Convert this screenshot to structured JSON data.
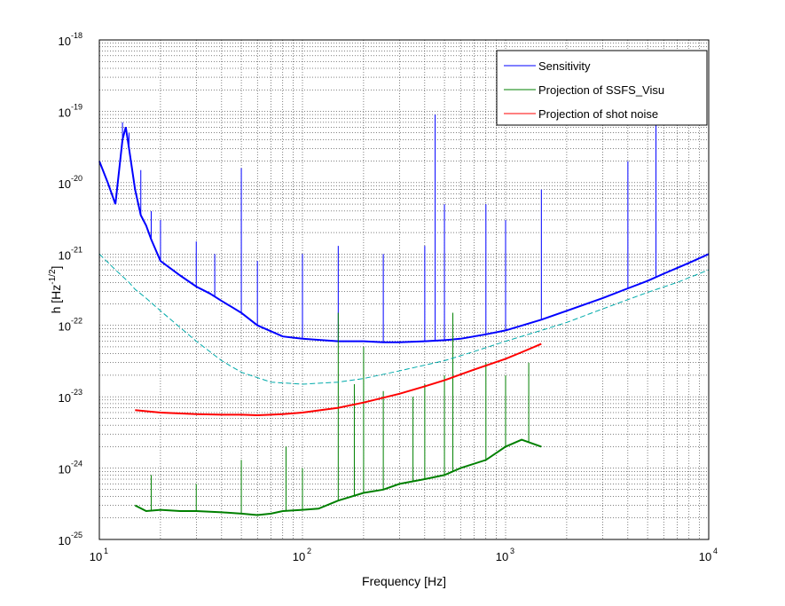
{
  "chart_data": {
    "type": "line",
    "title": "",
    "xlabel": "Frequency [Hz]",
    "ylabel_main": "h [Hz",
    "ylabel_sup": "-1/2",
    "ylabel_end": "]",
    "xscale": "log",
    "yscale": "log",
    "xlim": [
      10,
      10000
    ],
    "ylim": [
      1e-25,
      1e-18
    ],
    "grid": true,
    "legend_position": "top-right",
    "x_ticks": [
      {
        "base": "10",
        "exp": "1",
        "value": 10
      },
      {
        "base": "10",
        "exp": "2",
        "value": 100
      },
      {
        "base": "10",
        "exp": "3",
        "value": 1000
      },
      {
        "base": "10",
        "exp": "4",
        "value": 10000
      }
    ],
    "y_ticks": [
      {
        "base": "10",
        "exp": "-25",
        "value": 1e-25
      },
      {
        "base": "10",
        "exp": "-24",
        "value": 1e-24
      },
      {
        "base": "10",
        "exp": "-23",
        "value": 1e-23
      },
      {
        "base": "10",
        "exp": "-22",
        "value": 1e-22
      },
      {
        "base": "10",
        "exp": "-21",
        "value": 1e-21
      },
      {
        "base": "10",
        "exp": "-20",
        "value": 1e-20
      },
      {
        "base": "10",
        "exp": "-19",
        "value": 1e-19
      },
      {
        "base": "10",
        "exp": "-18",
        "value": 1e-18
      }
    ],
    "series": [
      {
        "name": "Sensitivity",
        "color": "#0000ff",
        "style": "solid",
        "x": [
          10,
          11,
          12,
          13,
          13.5,
          14,
          15,
          16,
          17,
          18,
          20,
          25,
          30,
          35,
          40,
          45,
          50,
          60,
          80,
          100,
          150,
          200,
          250,
          300,
          400,
          500,
          600,
          800,
          1000,
          1500,
          2000,
          3000,
          4000,
          5000,
          6000,
          8000,
          10000
        ],
        "y": [
          2e-20,
          1e-20,
          5e-21,
          4e-20,
          6e-20,
          3e-20,
          8e-21,
          3.5e-21,
          2.5e-21,
          1.6e-21,
          8e-22,
          5e-22,
          3.5e-22,
          2.8e-22,
          2.2e-22,
          1.8e-22,
          1.5e-22,
          1e-22,
          7e-23,
          6.5e-23,
          6e-23,
          6e-23,
          5.8e-23,
          5.8e-23,
          6e-23,
          6.2e-23,
          6.5e-23,
          7.5e-23,
          8.5e-23,
          1.2e-22,
          1.6e-22,
          2.4e-22,
          3.3e-22,
          4.2e-22,
          5.3e-22,
          7.5e-22,
          1e-21
        ],
        "peaks": [
          {
            "x": 13,
            "y": 7e-20
          },
          {
            "x": 14,
            "y": 5e-20
          },
          {
            "x": 16,
            "y": 1.5e-20
          },
          {
            "x": 18,
            "y": 4e-21
          },
          {
            "x": 20,
            "y": 3e-21
          },
          {
            "x": 30,
            "y": 1.5e-21
          },
          {
            "x": 37,
            "y": 1e-21
          },
          {
            "x": 50,
            "y": 1.6e-20
          },
          {
            "x": 60,
            "y": 8e-22
          },
          {
            "x": 100,
            "y": 1e-21
          },
          {
            "x": 150,
            "y": 1.3e-21
          },
          {
            "x": 250,
            "y": 1e-21
          },
          {
            "x": 400,
            "y": 1.3e-21
          },
          {
            "x": 450,
            "y": 9e-20
          },
          {
            "x": 500,
            "y": 5e-21
          },
          {
            "x": 800,
            "y": 5e-21
          },
          {
            "x": 1000,
            "y": 3e-21
          },
          {
            "x": 1500,
            "y": 8e-21
          },
          {
            "x": 4000,
            "y": 2e-20
          },
          {
            "x": 5500,
            "y": 9e-20
          },
          {
            "x": 10000,
            "y": 1.2e-20
          }
        ]
      },
      {
        "name": "Projection of SSFS_Visu",
        "color": "#008000",
        "style": "solid",
        "x": [
          15,
          17,
          20,
          25,
          30,
          40,
          50,
          60,
          70,
          80,
          100,
          120,
          150,
          200,
          250,
          300,
          400,
          500,
          600,
          800,
          1000,
          1200,
          1500
        ],
        "y": [
          3e-25,
          2.5e-25,
          2.6e-25,
          2.5e-25,
          2.5e-25,
          2.4e-25,
          2.3e-25,
          2.2e-25,
          2.3e-25,
          2.5e-25,
          2.6e-25,
          2.7e-25,
          3.5e-25,
          4.5e-25,
          5e-25,
          6e-25,
          7e-25,
          8e-25,
          1e-24,
          1.3e-24,
          2e-24,
          2.5e-24,
          2e-24
        ],
        "peaks": [
          {
            "x": 18,
            "y": 8e-25
          },
          {
            "x": 30,
            "y": 6e-25
          },
          {
            "x": 50,
            "y": 1.3e-24
          },
          {
            "x": 83,
            "y": 2e-24
          },
          {
            "x": 100,
            "y": 1e-24
          },
          {
            "x": 150,
            "y": 1.5e-22
          },
          {
            "x": 180,
            "y": 1.5e-23
          },
          {
            "x": 200,
            "y": 5e-23
          },
          {
            "x": 250,
            "y": 1.2e-23
          },
          {
            "x": 350,
            "y": 1e-23
          },
          {
            "x": 400,
            "y": 1.5e-23
          },
          {
            "x": 500,
            "y": 2e-23
          },
          {
            "x": 550,
            "y": 1.5e-22
          },
          {
            "x": 800,
            "y": 3e-23
          },
          {
            "x": 1000,
            "y": 2e-23
          },
          {
            "x": 1300,
            "y": 3e-23
          }
        ]
      },
      {
        "name": "Projection of shot noise",
        "color": "#ff0000",
        "style": "solid",
        "x": [
          15,
          20,
          30,
          40,
          50,
          60,
          70,
          80,
          100,
          150,
          200,
          300,
          400,
          500,
          700,
          1000,
          1200,
          1500
        ],
        "y": [
          6.5e-24,
          6e-24,
          5.7e-24,
          5.6e-24,
          5.6e-24,
          5.5e-24,
          5.6e-24,
          5.7e-24,
          6e-24,
          7e-24,
          8.3e-24,
          1.1e-23,
          1.4e-23,
          1.7e-23,
          2.4e-23,
          3.4e-23,
          4.2e-23,
          5.5e-23
        ]
      },
      {
        "name": "",
        "color": "#00aaaa",
        "style": "dashed",
        "x": [
          10,
          12,
          14,
          15,
          17,
          20,
          30,
          40,
          50,
          70,
          100,
          150,
          200,
          300,
          500,
          700,
          1000,
          1500,
          2000,
          3000,
          5000,
          7000,
          10000
        ],
        "y": [
          1e-21,
          6e-22,
          4e-22,
          3.2e-22,
          2.4e-22,
          1.6e-22,
          6e-23,
          3.2e-23,
          2.2e-23,
          1.6e-23,
          1.5e-23,
          1.6e-23,
          1.8e-23,
          2.3e-23,
          3.2e-23,
          4.3e-23,
          6e-23,
          8.5e-23,
          1.1e-22,
          1.7e-22,
          2.9e-22,
          4e-22,
          6e-22
        ]
      }
    ],
    "legend": [
      {
        "label": "Sensitivity",
        "color": "#0000ff"
      },
      {
        "label": " Projection of SSFS_Visu",
        "color": "#008000"
      },
      {
        "label": "Projection of shot noise",
        "color": "#ff0000"
      }
    ]
  }
}
